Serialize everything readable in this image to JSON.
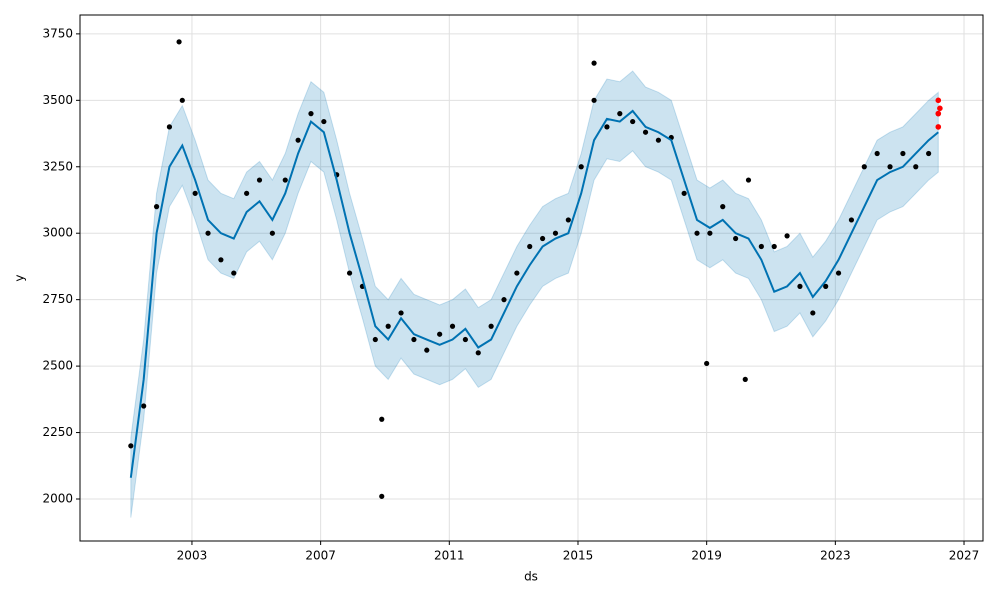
{
  "chart_data": {
    "type": "line",
    "xlabel": "ds",
    "ylabel": "y",
    "xlim": [
      1999.52,
      2027.59
    ],
    "ylim": [
      1842,
      3821
    ],
    "xticks": [
      2003,
      2007,
      2011,
      2015,
      2019,
      2023,
      2027
    ],
    "yticks": [
      2000,
      2250,
      2500,
      2750,
      3000,
      3250,
      3500,
      3750
    ],
    "grid": true,
    "x": [
      2001.1,
      2001.5,
      2001.9,
      2002.3,
      2002.7,
      2003.1,
      2003.5,
      2003.9,
      2004.3,
      2004.7,
      2005.1,
      2005.5,
      2005.9,
      2006.3,
      2006.7,
      2007.1,
      2007.5,
      2007.9,
      2008.3,
      2008.7,
      2009.1,
      2009.5,
      2009.9,
      2010.3,
      2010.7,
      2011.1,
      2011.5,
      2011.9,
      2012.3,
      2012.7,
      2013.1,
      2013.5,
      2013.9,
      2014.3,
      2014.7,
      2015.1,
      2015.5,
      2015.9,
      2016.3,
      2016.7,
      2017.1,
      2017.5,
      2017.9,
      2018.3,
      2018.7,
      2019.1,
      2019.5,
      2019.9,
      2020.3,
      2020.7,
      2021.1,
      2021.5,
      2021.9,
      2022.3,
      2022.7,
      2023.1,
      2023.5,
      2023.9,
      2024.3,
      2024.7,
      2025.1,
      2025.5,
      2025.9,
      2026.2
    ],
    "band": {
      "color": "#0072B2",
      "upper": [
        2230,
        2600,
        3150,
        3400,
        3480,
        3350,
        3200,
        3150,
        3130,
        3230,
        3270,
        3200,
        3300,
        3450,
        3570,
        3530,
        3350,
        3150,
        2980,
        2800,
        2750,
        2830,
        2770,
        2750,
        2730,
        2750,
        2790,
        2720,
        2750,
        2850,
        2950,
        3030,
        3100,
        3130,
        3150,
        3300,
        3500,
        3580,
        3570,
        3610,
        3550,
        3530,
        3500,
        3350,
        3200,
        3170,
        3200,
        3150,
        3130,
        3050,
        2930,
        2950,
        3000,
        2910,
        2970,
        3050,
        3150,
        3250,
        3350,
        3380,
        3400,
        3450,
        3500,
        3530
      ],
      "lower": [
        1930,
        2300,
        2850,
        3100,
        3180,
        3050,
        2900,
        2850,
        2830,
        2930,
        2970,
        2900,
        3000,
        3150,
        3270,
        3230,
        3050,
        2850,
        2680,
        2500,
        2450,
        2530,
        2470,
        2450,
        2430,
        2450,
        2490,
        2420,
        2450,
        2550,
        2650,
        2730,
        2800,
        2830,
        2850,
        3000,
        3200,
        3280,
        3270,
        3310,
        3250,
        3230,
        3200,
        3050,
        2900,
        2870,
        2900,
        2850,
        2830,
        2750,
        2630,
        2650,
        2700,
        2610,
        2670,
        2750,
        2850,
        2950,
        3050,
        3080,
        3100,
        3150,
        3200,
        3230
      ]
    },
    "series": [
      {
        "color": "#0072B2",
        "values": [
          2080,
          2450,
          3000,
          3250,
          3330,
          3200,
          3050,
          3000,
          2980,
          3080,
          3120,
          3050,
          3150,
          3300,
          3420,
          3380,
          3200,
          3000,
          2830,
          2650,
          2600,
          2680,
          2620,
          2600,
          2580,
          2600,
          2640,
          2570,
          2600,
          2700,
          2800,
          2880,
          2950,
          2980,
          3000,
          3150,
          3350,
          3430,
          3420,
          3460,
          3400,
          3380,
          3350,
          3200,
          3050,
          3020,
          3050,
          3000,
          2980,
          2900,
          2780,
          2800,
          2850,
          2760,
          2820,
          2900,
          3000,
          3100,
          3200,
          3230,
          3250,
          3300,
          3350,
          3380
        ]
      }
    ],
    "observed": {
      "color": "#000000",
      "x": [
        2001.1,
        2001.5,
        2001.9,
        2002.3,
        2002.7,
        2003.1,
        2003.5,
        2003.9,
        2004.3,
        2004.7,
        2005.1,
        2005.5,
        2005.9,
        2006.3,
        2006.7,
        2007.1,
        2007.5,
        2007.9,
        2008.3,
        2008.7,
        2009.1,
        2009.5,
        2009.9,
        2010.3,
        2010.7,
        2011.1,
        2011.5,
        2011.9,
        2012.3,
        2012.7,
        2013.1,
        2013.5,
        2013.9,
        2014.3,
        2014.7,
        2015.1,
        2015.5,
        2015.9,
        2016.3,
        2016.7,
        2017.1,
        2017.5,
        2017.9,
        2018.3,
        2018.7,
        2019.1,
        2019.5,
        2019.9,
        2020.3,
        2020.7,
        2021.1,
        2021.5,
        2021.9,
        2022.3,
        2022.7,
        2023.1,
        2023.5,
        2023.9,
        2024.3,
        2024.7,
        2025.1,
        2025.5,
        2025.9,
        2026.2,
        2008.9,
        2008.9,
        2019.0,
        2020.2,
        2002.6,
        2015.5
      ],
      "values": [
        2200,
        2350,
        3100,
        3400,
        3500,
        3150,
        3000,
        2900,
        2850,
        3150,
        3200,
        3000,
        3200,
        3350,
        3450,
        3420,
        3220,
        2850,
        2800,
        2600,
        2650,
        2700,
        2600,
        2560,
        2620,
        2650,
        2600,
        2550,
        2650,
        2750,
        2850,
        2950,
        2980,
        3000,
        3050,
        3250,
        3500,
        3400,
        3450,
        3420,
        3380,
        3350,
        3360,
        3150,
        3000,
        3000,
        3100,
        2980,
        3200,
        2950,
        2950,
        2990,
        2800,
        2700,
        2800,
        2850,
        3050,
        3250,
        3300,
        3250,
        3300,
        3250,
        3300,
        3450,
        2010,
        2300,
        2510,
        2450,
        3720,
        3640
      ]
    },
    "highlighted": {
      "color": "#ff0000",
      "x": [
        2026.2,
        2026.2,
        2026.2,
        2026.25
      ],
      "values": [
        3500,
        3450,
        3400,
        3470
      ]
    }
  }
}
